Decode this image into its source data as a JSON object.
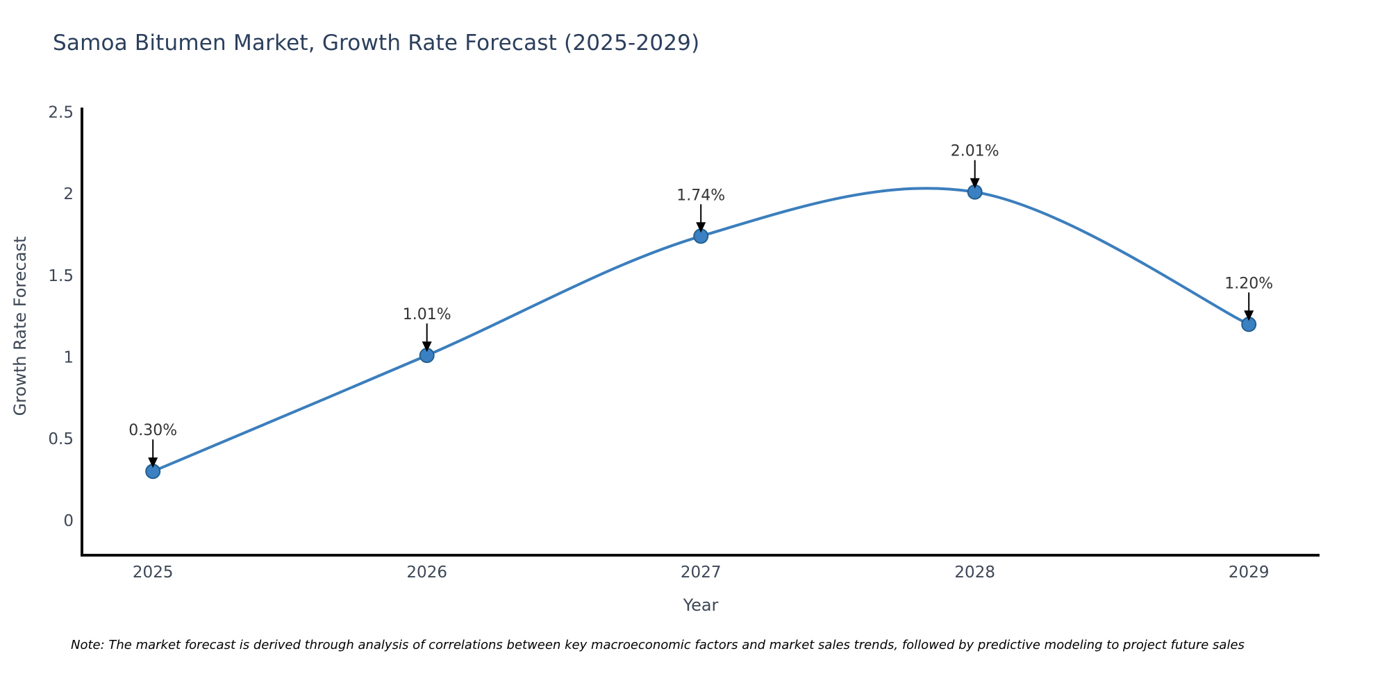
{
  "chart_data": {
    "type": "line",
    "title": "Samoa Bitumen Market, Growth Rate Forecast (2025-2029)",
    "xlabel": "Year",
    "ylabel": "Growth Rate Forecast",
    "x": [
      2025,
      2026,
      2027,
      2028,
      2029
    ],
    "series": [
      {
        "name": "Growth Rate Forecast",
        "values": [
          0.3,
          1.01,
          1.74,
          2.01,
          1.2
        ]
      }
    ],
    "point_labels": [
      "0.30%",
      "1.01%",
      "1.74%",
      "2.01%",
      "1.20%"
    ],
    "yticks": [
      0,
      0.5,
      1,
      1.5,
      2,
      2.5
    ],
    "ytick_labels": [
      "0",
      "0.5",
      "1",
      "1.5",
      "2",
      "2.5"
    ],
    "xtick_labels": [
      "2025",
      "2026",
      "2027",
      "2028",
      "2029"
    ],
    "ylim": [
      -0.213,
      2.527
    ],
    "xlim": [
      2024.741,
      2029.258
    ],
    "grid": false,
    "legend": "none",
    "curve": "spline",
    "line_color": "#3b7ebd",
    "marker_fill": "#3a80c2",
    "marker_edge": "#24608f",
    "spine_color": "#0d0d0d",
    "arrow_color": "#000000",
    "annotation_color": "#333333",
    "title_color": "#2b3f5c",
    "tick_color": "#3d4756"
  },
  "footer": {
    "note": "Note: The market forecast is derived through analysis of correlations between key macroeconomic factors and market sales trends, followed by predictive modeling to project future sales"
  }
}
